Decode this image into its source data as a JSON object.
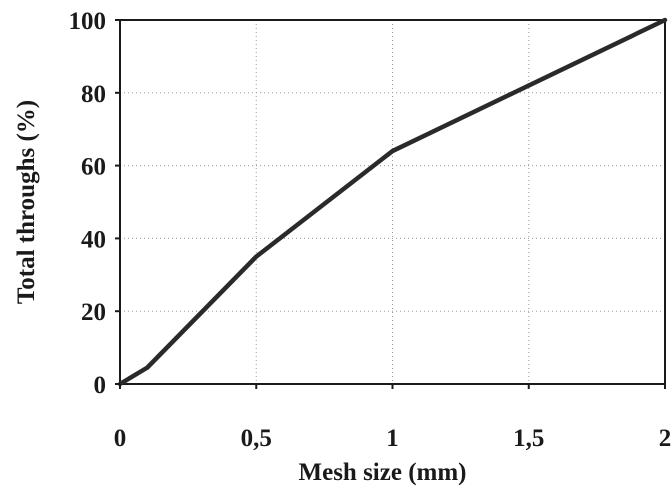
{
  "chart_data": {
    "type": "line",
    "title": "",
    "xlabel": "Mesh size (mm)",
    "ylabel": "Total throughs (%)",
    "xlim": [
      0,
      2
    ],
    "ylim": [
      0,
      100
    ],
    "x_ticks": [
      0,
      0.5,
      1,
      1.5,
      2
    ],
    "x_tick_labels": [
      "0",
      "0,5",
      "1",
      "1,5",
      "2"
    ],
    "y_ticks": [
      0,
      20,
      40,
      60,
      80,
      100
    ],
    "y_tick_labels": [
      "0",
      "20",
      "40",
      "60",
      "80",
      "100"
    ],
    "grid": true,
    "legend": "none",
    "series": [
      {
        "x": [
          0,
          0.1,
          0.5,
          1,
          2
        ],
        "y": [
          0,
          4.5,
          35,
          64,
          100
        ],
        "color": "#2a2a2a"
      }
    ]
  }
}
